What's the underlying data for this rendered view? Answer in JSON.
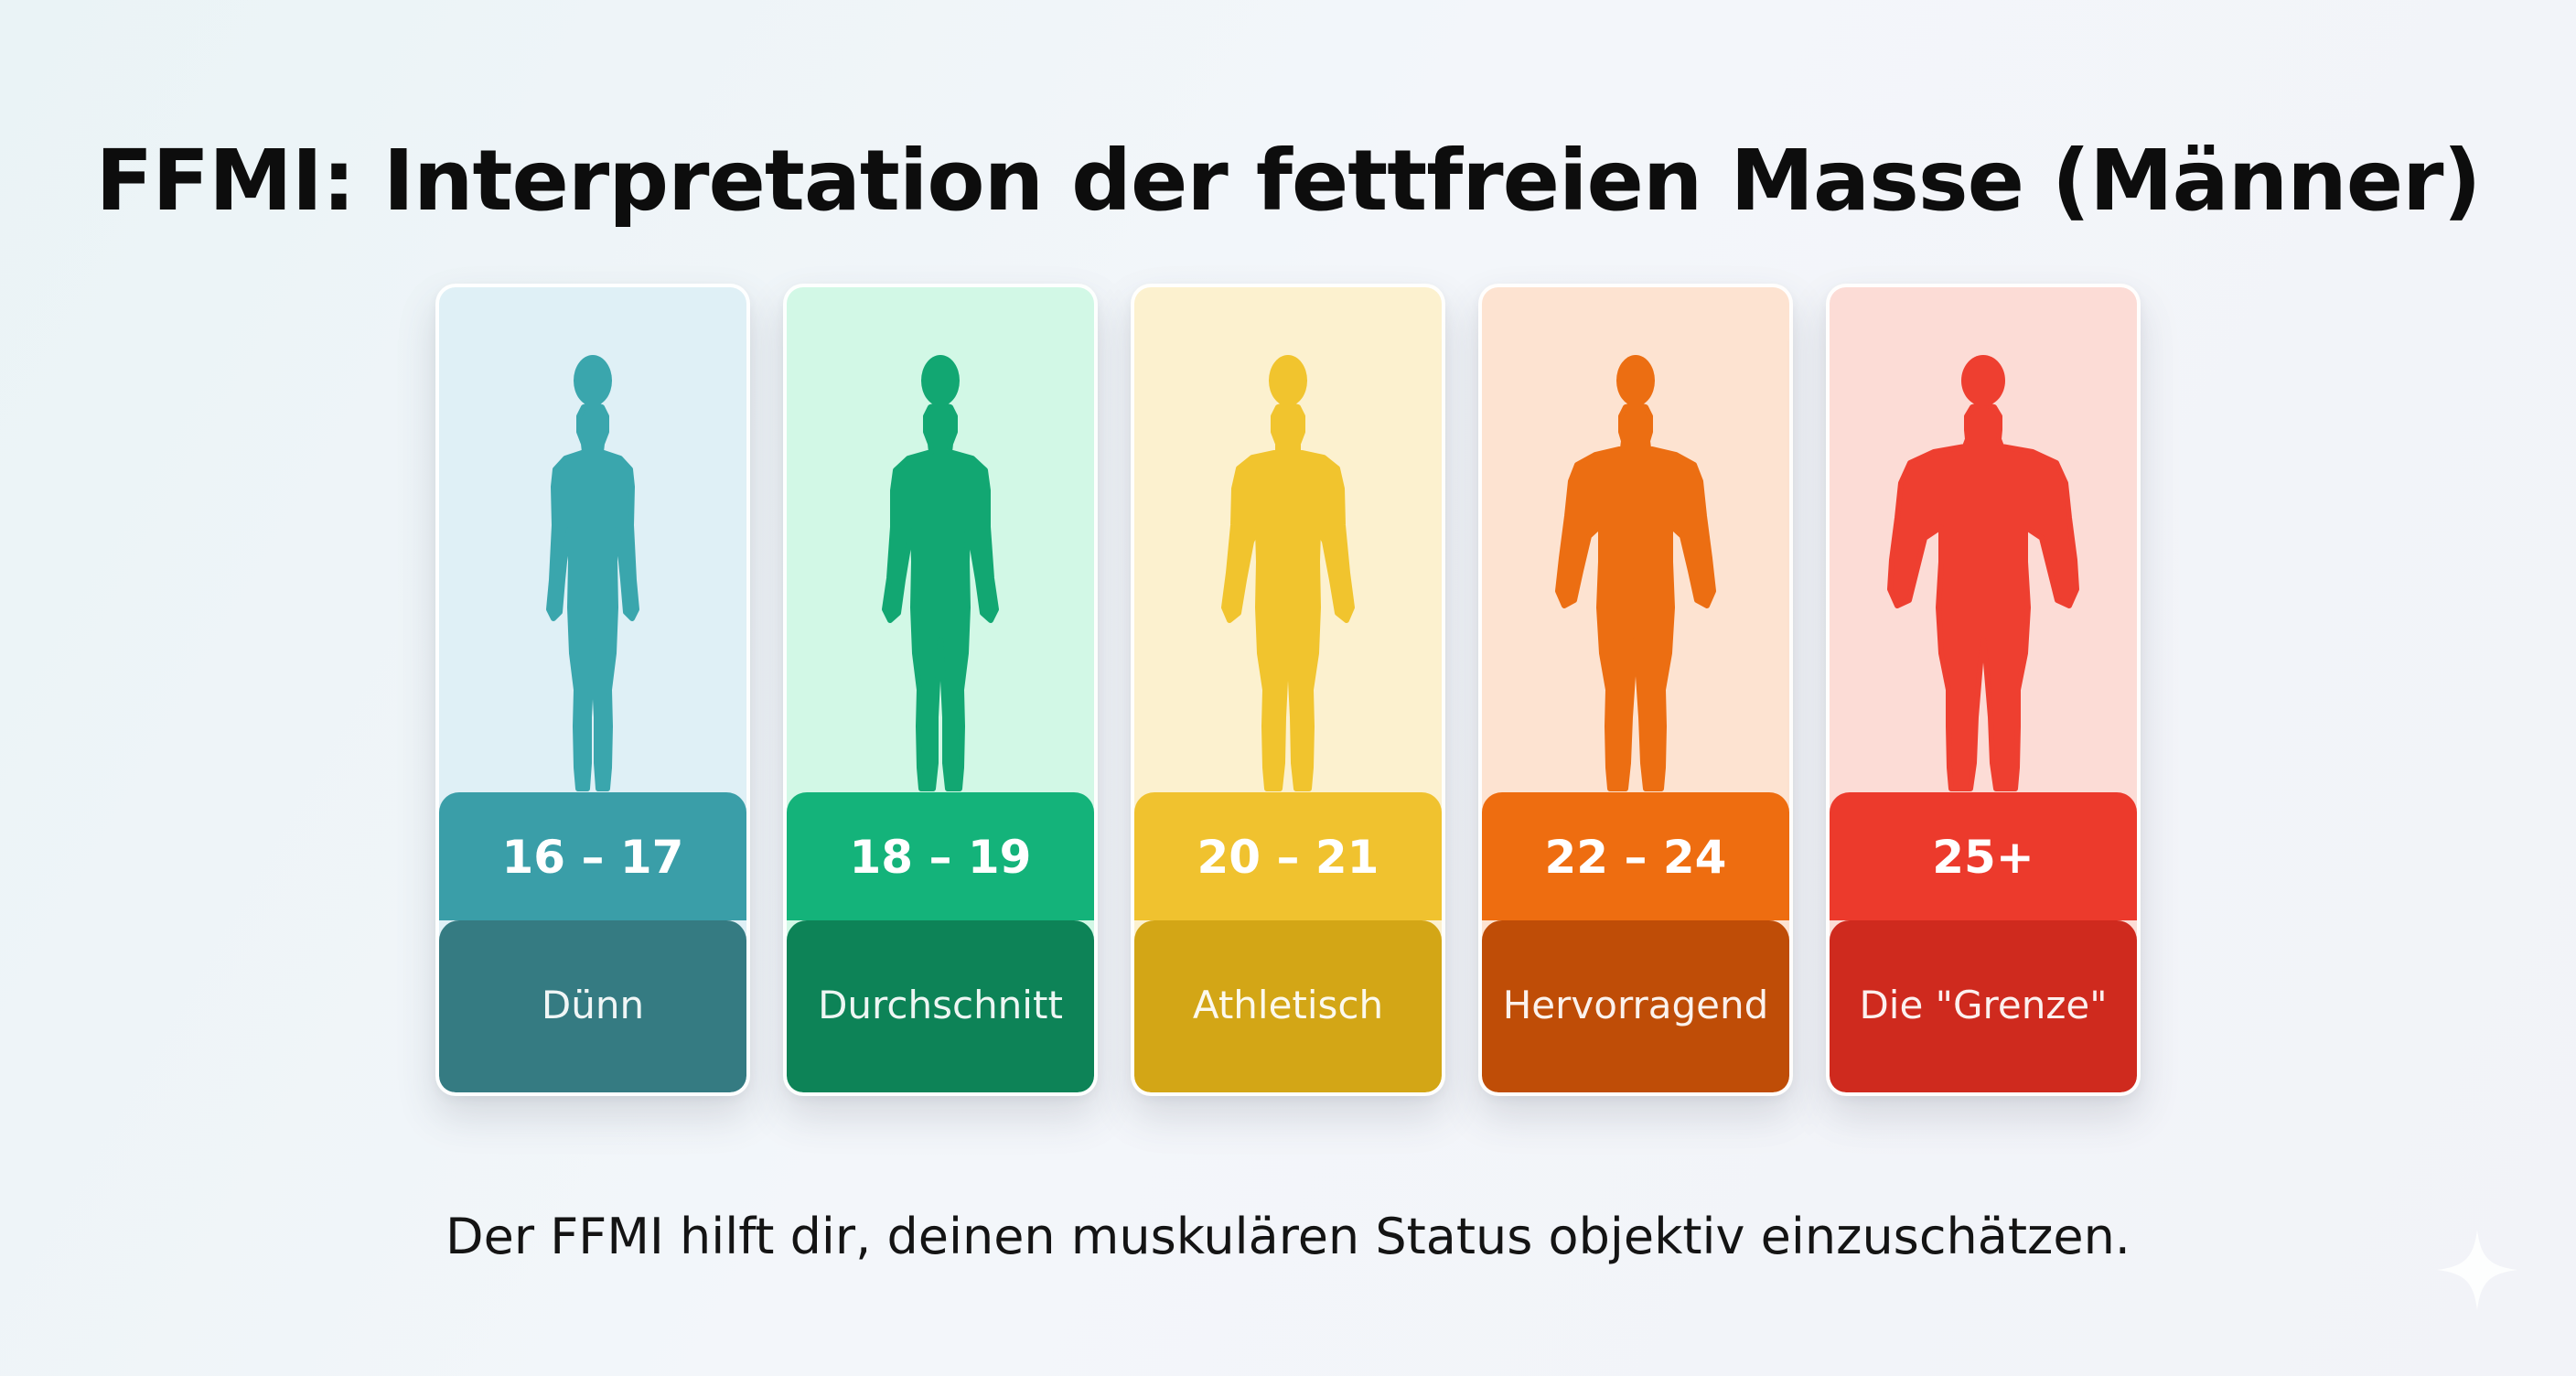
{
  "title": "FFMI: Interpretation der fettfreien Masse (Männer)",
  "footer": "Der FFMI hilft dir, deinen muskulären Status objektiv einzuschätzen.",
  "categories": [
    {
      "range": "16 – 17",
      "label": "Dünn",
      "build": "slim",
      "icon": "slim-body-silhouette-icon",
      "colors": {
        "card_bg": "#dff0f6",
        "figure": "#3aa6ad",
        "range_bg": "#3a9ea8",
        "label_bg": "#357b82"
      }
    },
    {
      "range": "18 – 19",
      "label": "Durchschnitt",
      "build": "average",
      "icon": "average-body-silhouette-icon",
      "colors": {
        "card_bg": "#d2f8e6",
        "figure": "#12a772",
        "range_bg": "#14b37a",
        "label_bg": "#0d8357"
      }
    },
    {
      "range": "20 – 21",
      "label": "Athletisch",
      "build": "athletic",
      "icon": "athletic-body-silhouette-icon",
      "colors": {
        "card_bg": "#fcf1cf",
        "figure": "#f1c42e",
        "range_bg": "#f0c22f",
        "label_bg": "#d3a616"
      }
    },
    {
      "range": "22 – 24",
      "label": "Hervorragend",
      "build": "muscular",
      "icon": "muscular-body-silhouette-icon",
      "colors": {
        "card_bg": "#fde3d1",
        "figure": "#ec6e12",
        "range_bg": "#ee6d10",
        "label_bg": "#bf4d07"
      }
    },
    {
      "range": "25+",
      "label": "Die \"Grenze\"",
      "build": "massive",
      "icon": "massive-body-silhouette-icon",
      "colors": {
        "card_bg": "#fcdcd6",
        "figure": "#ee3f30",
        "range_bg": "#ec3a2c",
        "label_bg": "#cf2a1e"
      }
    }
  ],
  "watermark_icon": "sparkle-icon"
}
